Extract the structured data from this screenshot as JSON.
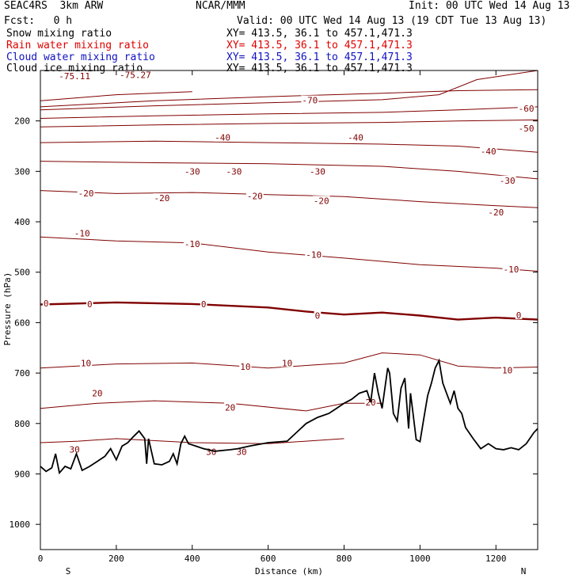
{
  "header": {
    "model": "SEAC4RS  3km ARW",
    "center": "NCAR/MMM",
    "init": "Init: 00 UTC Wed 14 Aug 13",
    "fcst": "Fcst:   0 h",
    "valid": "Valid: 00 UTC Wed 14 Aug 13 (19 CDT Tue 13 Aug 13)",
    "fields": [
      {
        "name": "Snow mixing ratio",
        "xy": "XY= 413.5, 36.1 to 457.1,471.3",
        "color": "#000000"
      },
      {
        "name": "Rain water mixing ratio",
        "xy": "XY= 413.5, 36.1 to 457.1,471.3",
        "color": "#e00000"
      },
      {
        "name": "Cloud water mixing ratio",
        "xy": "XY= 413.5, 36.1 to 457.1,471.3",
        "color": "#1010c0"
      },
      {
        "name": "Cloud ice mixing ratio",
        "xy": "XY= 413.5, 36.1 to 457.1,471.3",
        "color": "#000000"
      }
    ]
  },
  "chart_data": {
    "type": "line",
    "xlabel": "Distance (km)",
    "ylabel": "Pressure (hPa)",
    "xlim": [
      0,
      1310
    ],
    "ylim": [
      1050,
      100
    ],
    "x_ticks": [
      0,
      200,
      400,
      600,
      800,
      1000,
      1200
    ],
    "y_ticks": [
      200,
      300,
      400,
      500,
      600,
      700,
      800,
      900,
      1000
    ],
    "y_tick_labels": [
      "200",
      "300",
      "400",
      "500",
      "600",
      "700",
      "800",
      "900",
      "1000"
    ],
    "end_labels": {
      "left": "S",
      "right": "N"
    },
    "contour_color": "#800000",
    "terrain_color": "#000000",
    "isotherms": [
      {
        "level": -75.11,
        "label": "-75.11",
        "points": [
          [
            0,
            160
          ],
          [
            200,
            148
          ],
          [
            400,
            142
          ]
        ],
        "label_at": [
          [
            90,
            111
          ]
        ]
      },
      {
        "level": -75.27,
        "label": "-75.27",
        "points": [
          [
            0,
            172
          ],
          [
            300,
            160
          ],
          [
            600,
            152
          ],
          [
            900,
            145
          ],
          [
            1100,
            140
          ],
          [
            1310,
            138
          ]
        ],
        "label_at": [
          [
            250,
            109
          ]
        ]
      },
      {
        "level": -70,
        "label": "-70",
        "points": [
          [
            0,
            178
          ],
          [
            300,
            170
          ],
          [
            600,
            164
          ],
          [
            900,
            158
          ],
          [
            1050,
            148
          ],
          [
            1150,
            118
          ],
          [
            1310,
            100
          ]
        ],
        "label_at": [
          [
            710,
            159
          ]
        ]
      },
      {
        "level": -60,
        "label": "-60",
        "points": [
          [
            0,
            195
          ],
          [
            300,
            190
          ],
          [
            600,
            186
          ],
          [
            900,
            183
          ],
          [
            1100,
            178
          ],
          [
            1310,
            172
          ]
        ],
        "label_at": [
          [
            1280,
            175
          ]
        ]
      },
      {
        "level": -50,
        "label": "-50",
        "points": [
          [
            0,
            212
          ],
          [
            300,
            208
          ],
          [
            600,
            205
          ],
          [
            900,
            203
          ],
          [
            1100,
            200
          ],
          [
            1310,
            198
          ]
        ],
        "label_at": [
          [
            1280,
            215
          ]
        ]
      },
      {
        "level": -40,
        "label": "-40",
        "points": [
          [
            0,
            243
          ],
          [
            300,
            240
          ],
          [
            600,
            243
          ],
          [
            900,
            246
          ],
          [
            1100,
            250
          ],
          [
            1310,
            262
          ]
        ],
        "label_at": [
          [
            480,
            233
          ],
          [
            830,
            233
          ],
          [
            1180,
            260
          ]
        ]
      },
      {
        "level": -30,
        "label": "-30",
        "points": [
          [
            0,
            280
          ],
          [
            300,
            283
          ],
          [
            600,
            285
          ],
          [
            900,
            290
          ],
          [
            1100,
            300
          ],
          [
            1310,
            315
          ]
        ],
        "label_at": [
          [
            400,
            300
          ],
          [
            510,
            300
          ],
          [
            730,
            300
          ],
          [
            1230,
            318
          ]
        ]
      },
      {
        "level": -20,
        "label": "-20",
        "points": [
          [
            0,
            338
          ],
          [
            200,
            344
          ],
          [
            400,
            342
          ],
          [
            600,
            346
          ],
          [
            800,
            350
          ],
          [
            1000,
            360
          ],
          [
            1200,
            368
          ],
          [
            1310,
            372
          ]
        ],
        "label_at": [
          [
            120,
            343
          ],
          [
            320,
            353
          ],
          [
            565,
            349
          ],
          [
            740,
            358
          ],
          [
            1200,
            381
          ]
        ]
      },
      {
        "level": -10,
        "label": "-10",
        "points": [
          [
            0,
            430
          ],
          [
            200,
            438
          ],
          [
            400,
            442
          ],
          [
            600,
            460
          ],
          [
            800,
            472
          ],
          [
            1000,
            485
          ],
          [
            1200,
            492
          ],
          [
            1310,
            498
          ]
        ],
        "label_at": [
          [
            110,
            423
          ],
          [
            400,
            444
          ],
          [
            720,
            465
          ],
          [
            1240,
            494
          ]
        ]
      },
      {
        "level": 0,
        "label": "0",
        "points": [
          [
            0,
            564
          ],
          [
            200,
            560
          ],
          [
            400,
            563
          ],
          [
            600,
            570
          ],
          [
            700,
            578
          ],
          [
            800,
            584
          ],
          [
            900,
            580
          ],
          [
            1000,
            586
          ],
          [
            1100,
            594
          ],
          [
            1200,
            590
          ],
          [
            1310,
            594
          ]
        ],
        "label_at": [
          [
            15,
            562
          ],
          [
            130,
            563
          ],
          [
            430,
            563
          ],
          [
            730,
            586
          ],
          [
            1260,
            585
          ]
        ]
      },
      {
        "level": 10,
        "label": "10",
        "points": [
          [
            0,
            690
          ],
          [
            200,
            682
          ],
          [
            400,
            680
          ],
          [
            600,
            690
          ],
          [
            800,
            680
          ],
          [
            900,
            660
          ],
          [
            1000,
            664
          ],
          [
            1100,
            686
          ],
          [
            1200,
            690
          ],
          [
            1310,
            688
          ]
        ],
        "label_at": [
          [
            120,
            680
          ],
          [
            540,
            687
          ],
          [
            650,
            680
          ],
          [
            1230,
            694
          ]
        ]
      },
      {
        "level": 20,
        "label": "20",
        "points": [
          [
            0,
            770
          ],
          [
            150,
            760
          ],
          [
            300,
            755
          ],
          [
            500,
            760
          ],
          [
            700,
            775
          ],
          [
            800,
            760
          ],
          [
            900,
            760
          ]
        ],
        "label_at": [
          [
            150,
            740
          ],
          [
            500,
            768
          ],
          [
            870,
            758
          ]
        ]
      },
      {
        "level": 30,
        "label": "30",
        "points": [
          [
            0,
            838
          ],
          [
            100,
            835
          ],
          [
            200,
            830
          ],
          [
            400,
            838
          ],
          [
            600,
            840
          ],
          [
            800,
            830
          ]
        ],
        "label_at": [
          [
            90,
            851
          ],
          [
            450,
            856
          ],
          [
            530,
            856
          ]
        ]
      }
    ],
    "terrain": {
      "x": [
        0,
        15,
        30,
        40,
        50,
        65,
        80,
        95,
        110,
        130,
        150,
        170,
        185,
        200,
        215,
        230,
        245,
        260,
        275,
        280,
        285,
        300,
        320,
        340,
        350,
        360,
        370,
        380,
        390,
        410,
        430,
        460,
        500,
        520,
        550,
        600,
        650,
        700,
        730,
        760,
        780,
        800,
        820,
        840,
        860,
        870,
        880,
        890,
        900,
        915,
        920,
        930,
        940,
        950,
        960,
        970,
        975,
        980,
        990,
        1000,
        1010,
        1020,
        1030,
        1040,
        1050,
        1060,
        1070,
        1080,
        1090,
        1100,
        1110,
        1120,
        1140,
        1160,
        1180,
        1200,
        1220,
        1240,
        1260,
        1280,
        1300,
        1310
      ],
      "p": [
        885,
        895,
        888,
        860,
        898,
        885,
        890,
        860,
        893,
        885,
        875,
        865,
        850,
        872,
        845,
        838,
        826,
        815,
        830,
        880,
        830,
        880,
        882,
        875,
        860,
        880,
        840,
        825,
        840,
        845,
        850,
        855,
        852,
        850,
        845,
        838,
        835,
        800,
        788,
        780,
        770,
        760,
        752,
        740,
        735,
        758,
        700,
        740,
        770,
        690,
        700,
        780,
        795,
        730,
        710,
        810,
        740,
        770,
        832,
        836,
        790,
        745,
        720,
        690,
        675,
        720,
        740,
        760,
        735,
        770,
        780,
        808,
        830,
        850,
        840,
        850,
        852,
        848,
        852,
        840,
        818,
        810
      ]
    }
  }
}
